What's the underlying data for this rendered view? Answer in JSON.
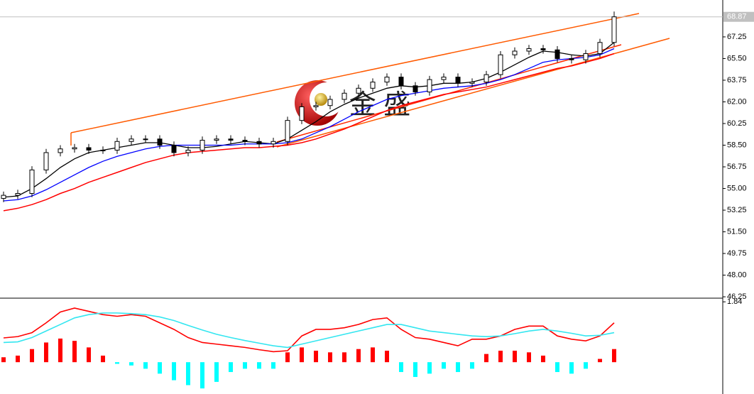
{
  "chart_data": {
    "type": "candlestick",
    "watermark": "金 盛",
    "last_price": 68.87,
    "ylim": [
      46.14,
      70.23
    ],
    "yticks": [
      46.25,
      {
        "value": 48,
        "label": "48.00"
      },
      49.75,
      {
        "value": 51.5,
        "label": "51.50"
      },
      53.25,
      {
        "value": 55,
        "label": "55.00"
      },
      56.75,
      {
        "value": 58.5,
        "label": "58.50"
      },
      60.25,
      {
        "value": 62,
        "label": "62.00"
      },
      63.75,
      {
        "value": 65.5,
        "label": "65.50"
      },
      67.25
    ],
    "up_color": "#ffffff",
    "down_color": "#000000",
    "open": [
      54.2,
      54.45,
      54.6,
      56.5,
      57.9,
      58.2,
      58.3,
      58.1,
      58.1,
      58.8,
      59.0,
      59.0,
      58.5,
      57.9,
      58.1,
      58.9,
      59.0,
      58.9,
      58.8,
      58.6,
      58.8,
      60.5,
      61.6,
      61.7,
      62.2,
      62.7,
      63.1,
      63.6,
      64.0,
      63.3,
      62.8,
      63.8,
      64.0,
      63.5,
      63.6,
      64.2,
      65.8,
      66.1,
      66.3,
      66.2,
      65.5,
      65.4,
      65.9,
      66.8
    ],
    "high": [
      54.75,
      54.9,
      56.8,
      58.2,
      58.5,
      58.6,
      58.6,
      58.4,
      59.1,
      59.3,
      59.3,
      59.3,
      58.8,
      58.4,
      59.2,
      59.3,
      59.3,
      59.2,
      59.1,
      59.1,
      60.8,
      61.9,
      62.0,
      62.5,
      63.0,
      63.4,
      63.9,
      64.3,
      64.3,
      63.6,
      64.1,
      64.3,
      64.3,
      63.9,
      64.5,
      66.1,
      66.4,
      66.6,
      66.6,
      66.5,
      65.8,
      66.2,
      67.1,
      69.3
    ],
    "low": [
      53.9,
      54.15,
      54.3,
      56.2,
      57.6,
      57.9,
      57.8,
      57.8,
      57.8,
      58.5,
      58.7,
      58.2,
      57.6,
      57.6,
      57.8,
      58.6,
      58.6,
      58.5,
      58.3,
      58.3,
      58.5,
      60.2,
      61.3,
      61.4,
      61.9,
      62.4,
      62.8,
      63.3,
      63.0,
      62.5,
      62.5,
      63.5,
      63.2,
      63.2,
      63.3,
      63.9,
      65.5,
      65.8,
      65.9,
      65.2,
      65.1,
      65.1,
      65.6,
      66.5
    ],
    "close": [
      54.45,
      54.6,
      56.5,
      57.9,
      58.2,
      58.3,
      58.1,
      58.1,
      58.8,
      59.0,
      59.0,
      58.5,
      57.9,
      58.1,
      58.9,
      59.0,
      58.9,
      58.8,
      58.6,
      58.8,
      60.5,
      61.6,
      61.7,
      62.2,
      62.7,
      63.1,
      63.6,
      64.0,
      63.3,
      62.8,
      63.8,
      64.0,
      63.5,
      63.6,
      64.2,
      65.8,
      66.1,
      66.3,
      66.2,
      65.5,
      65.4,
      65.9,
      66.8,
      68.87
    ],
    "moving_averages": [
      {
        "color": "#000000",
        "values": [
          54.3,
          54.4,
          55.0,
          55.8,
          56.7,
          57.4,
          57.9,
          58.1,
          58.3,
          58.5,
          58.7,
          58.7,
          58.5,
          58.3,
          58.3,
          58.4,
          58.6,
          58.8,
          58.7,
          58.6,
          59.0,
          59.7,
          60.4,
          61.2,
          61.8,
          62.3,
          62.7,
          63.1,
          63.3,
          63.2,
          63.3,
          63.5,
          63.5,
          63.6,
          63.9,
          64.4,
          65.0,
          65.6,
          66.1,
          66.0,
          65.8,
          65.7,
          65.9,
          66.8
        ]
      },
      {
        "color": "#0000ff",
        "values": [
          54.0,
          54.1,
          54.4,
          54.9,
          55.5,
          56.1,
          56.7,
          57.2,
          57.6,
          57.9,
          58.2,
          58.4,
          58.5,
          58.5,
          58.5,
          58.5,
          58.5,
          58.6,
          58.6,
          58.6,
          58.7,
          59.0,
          59.5,
          60.0,
          60.6,
          61.2,
          61.7,
          62.2,
          62.5,
          62.7,
          62.9,
          63.1,
          63.2,
          63.3,
          63.5,
          63.8,
          64.2,
          64.7,
          65.2,
          65.4,
          65.5,
          65.6,
          65.8,
          66.3
        ]
      },
      {
        "color": "#ff0000",
        "values": [
          53.2,
          53.4,
          53.7,
          54.1,
          54.6,
          55.0,
          55.5,
          55.9,
          56.3,
          56.7,
          57.1,
          57.4,
          57.7,
          57.9,
          58.0,
          58.1,
          58.2,
          58.3,
          58.3,
          58.4,
          58.5,
          58.7,
          59.0,
          59.4,
          59.8,
          60.3,
          60.8,
          61.3,
          61.7,
          62.0,
          62.3,
          62.6,
          62.8,
          63.0,
          63.2,
          63.5,
          63.8,
          64.1,
          64.4,
          64.7,
          64.9,
          65.2,
          65.5,
          65.9
        ]
      }
    ],
    "indicator": {
      "ylim": [
        -0.97,
        1.93
      ],
      "yticks": [
        1.84
      ],
      "histogram": {
        "up_color": "#ff0000",
        "down_color": "#00ffff",
        "values": [
          0.15,
          0.2,
          0.4,
          0.6,
          0.72,
          0.65,
          0.45,
          0.2,
          -0.05,
          -0.1,
          -0.2,
          -0.35,
          -0.55,
          -0.7,
          -0.8,
          -0.6,
          -0.3,
          -0.2,
          -0.2,
          -0.2,
          0.3,
          0.45,
          0.35,
          0.3,
          0.3,
          0.4,
          0.45,
          0.35,
          -0.3,
          -0.45,
          -0.35,
          -0.2,
          -0.3,
          -0.2,
          0.25,
          0.35,
          0.35,
          0.3,
          0.2,
          -0.3,
          -0.35,
          -0.2,
          0.1,
          0.4
        ]
      },
      "lines": [
        {
          "color": "#ff0000",
          "values": [
            0.74,
            0.78,
            0.9,
            1.2,
            1.53,
            1.65,
            1.55,
            1.45,
            1.4,
            1.45,
            1.4,
            1.2,
            1.0,
            0.75,
            0.6,
            0.55,
            0.5,
            0.45,
            0.38,
            0.32,
            0.35,
            0.8,
            1.0,
            1.0,
            1.05,
            1.15,
            1.3,
            1.35,
            1.0,
            0.75,
            0.7,
            0.6,
            0.5,
            0.7,
            0.7,
            0.8,
            1.0,
            1.1,
            1.1,
            0.8,
            0.7,
            0.65,
            0.8,
            1.2
          ]
        },
        {
          "color": "#33e6f0",
          "values": [
            0.6,
            0.62,
            0.75,
            0.95,
            1.15,
            1.35,
            1.45,
            1.5,
            1.5,
            1.48,
            1.45,
            1.38,
            1.27,
            1.12,
            0.98,
            0.85,
            0.75,
            0.66,
            0.58,
            0.5,
            0.45,
            0.55,
            0.65,
            0.75,
            0.85,
            0.95,
            1.05,
            1.15,
            1.15,
            1.05,
            0.95,
            0.9,
            0.85,
            0.8,
            0.78,
            0.8,
            0.87,
            0.95,
            1.0,
            0.95,
            0.88,
            0.8,
            0.82,
            0.9
          ]
        }
      ]
    }
  }
}
